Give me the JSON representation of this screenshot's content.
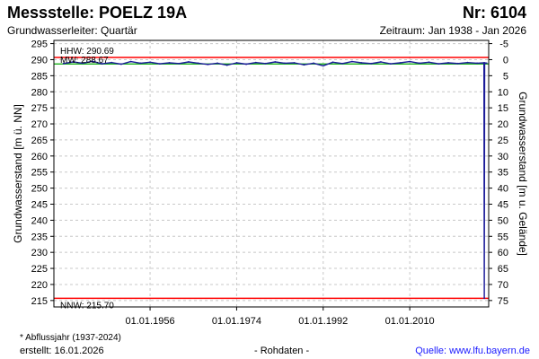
{
  "header": {
    "title": "Messstelle: POELZ 19A",
    "nr": "Nr: 6104",
    "subtitle": "Grundwasserleiter: Quartär",
    "zeitraum": "Zeitraum: Jan 1938 - Jan 2026"
  },
  "footer": {
    "footnote": "* Abflussjahr (1937-2024)",
    "erstellt": "erstellt:  16.01.2026",
    "rohdaten": "- Rohdaten -",
    "quelle": "Quelle:  www.lfu.bayern.de"
  },
  "colors": {
    "series": "#1a1a99",
    "reference": "#ff0000",
    "mean": "#00aa00",
    "grid": "#c8c8c8"
  },
  "chart_data": {
    "type": "line",
    "ylabel": "Grundwasserstand [m ü. NN]",
    "y2label": "Grundwasserstand [m u. Gelände]",
    "ylim": [
      213,
      296
    ],
    "yticks": [
      215,
      220,
      225,
      230,
      235,
      240,
      245,
      250,
      255,
      260,
      265,
      270,
      275,
      280,
      285,
      290,
      295
    ],
    "y2ticks": [
      -5,
      0,
      5,
      10,
      15,
      20,
      25,
      30,
      35,
      40,
      45,
      50,
      55,
      60,
      65,
      70,
      75
    ],
    "ground_level": 290,
    "xlim": [
      "1936-01-01",
      "2026-06-01"
    ],
    "xticks": [
      "01.01.1956",
      "01.01.1974",
      "01.01.1992",
      "01.01.2010"
    ],
    "grid": true,
    "reference_lines": [
      {
        "label": "HHW: 290.69",
        "value": 290.69
      },
      {
        "label": "MW: 288.67",
        "value": 288.67
      },
      {
        "label": "NNW: 215.70",
        "value": 215.7
      }
    ],
    "series": [
      {
        "x": [
          "1938-01-01",
          "1940-01-01",
          "1942-01-01",
          "1944-01-01",
          "1946-01-01",
          "1948-01-01",
          "1950-01-01",
          "1952-01-01",
          "1954-01-01",
          "1956-01-01",
          "1958-01-01",
          "1960-01-01",
          "1962-01-01",
          "1964-01-01",
          "1966-01-01",
          "1968-01-01",
          "1970-01-01",
          "1972-01-01",
          "1974-01-01",
          "1976-01-01",
          "1978-01-01",
          "1980-01-01",
          "1982-01-01",
          "1984-01-01",
          "1986-01-01",
          "1988-01-01",
          "1990-01-01",
          "1992-01-01",
          "1994-01-01",
          "1996-01-01",
          "1998-01-01",
          "2000-01-01",
          "2002-01-01",
          "2004-01-01",
          "2006-01-01",
          "2008-01-01",
          "2010-01-01",
          "2012-01-01",
          "2014-01-01",
          "2016-01-01",
          "2018-01-01",
          "2020-01-01",
          "2022-01-01",
          "2024-01-01",
          "2025-06-01",
          "2025-07-01",
          "2025-08-01",
          "2026-01-01"
        ],
        "values": [
          288.8,
          289.3,
          288.9,
          289.5,
          288.7,
          289.1,
          288.6,
          289.4,
          288.9,
          289.2,
          288.7,
          289.0,
          288.8,
          289.3,
          288.9,
          288.5,
          288.9,
          288.3,
          289.0,
          288.6,
          289.1,
          288.8,
          289.3,
          288.9,
          289.0,
          288.4,
          288.9,
          288.1,
          289.2,
          288.8,
          289.4,
          289.0,
          288.8,
          289.3,
          288.7,
          289.0,
          289.4,
          288.9,
          289.2,
          288.7,
          289.0,
          288.8,
          289.1,
          288.9,
          289.0,
          215.7,
          289.0,
          288.9
        ]
      }
    ]
  }
}
